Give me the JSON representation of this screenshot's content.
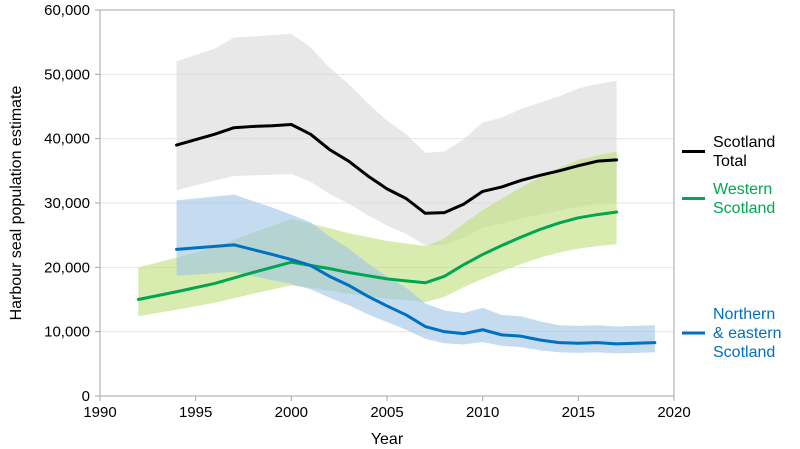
{
  "chart_data": {
    "type": "line",
    "title": "",
    "xlabel": "Year",
    "ylabel": "Harbour seal population estimate",
    "xlim": [
      1990,
      2020
    ],
    "ylim": [
      0,
      60000
    ],
    "x_ticks": [
      1990,
      1995,
      2000,
      2005,
      2010,
      2015,
      2020
    ],
    "y_ticks": [
      0,
      10000,
      20000,
      30000,
      40000,
      50000,
      60000
    ],
    "x_tick_labels": [
      "1990",
      "1995",
      "2000",
      "2005",
      "2010",
      "2015",
      "2020"
    ],
    "y_tick_labels": [
      "0",
      "10,000",
      "20,000",
      "30,000",
      "40,000",
      "50,000",
      "60,000"
    ],
    "grid": "horizontal",
    "legend": "right",
    "series": [
      {
        "name": "Scotland Total",
        "label_lines": [
          "Scotland",
          "Total"
        ],
        "color": "#000000",
        "band_color": "#d9d9d9",
        "x": [
          1994,
          1996,
          1997,
          1998,
          1999,
          2000,
          2001,
          2002,
          2003,
          2004,
          2005,
          2006,
          2007,
          2008,
          2009,
          2010,
          2011,
          2012,
          2013,
          2014,
          2015,
          2016,
          2017
        ],
        "values": [
          39000,
          40700,
          41700,
          41900,
          42000,
          42200,
          40700,
          38300,
          36500,
          34200,
          32200,
          30700,
          28400,
          28500,
          29800,
          31800,
          32500,
          33500,
          34300,
          35000,
          35800,
          36500,
          36700
        ],
        "upper": [
          52000,
          54000,
          55700,
          55900,
          56100,
          56300,
          54200,
          51000,
          48500,
          45500,
          42800,
          40700,
          37800,
          38000,
          39900,
          42500,
          43300,
          44600,
          45600,
          46600,
          47800,
          48500,
          49000
        ],
        "lower": [
          32000,
          33500,
          34200,
          34300,
          34400,
          34500,
          33300,
          31400,
          29900,
          28100,
          26500,
          25200,
          23400,
          23500,
          24600,
          26200,
          26800,
          27600,
          28200,
          28800,
          29400,
          29900,
          30100
        ]
      },
      {
        "name": "Western Scotland",
        "label_lines": [
          "Western",
          "Scotland"
        ],
        "color": "#00a651",
        "band_color": "#bfe07a",
        "x": [
          1992,
          1994,
          1996,
          1998,
          2000,
          2001,
          2002,
          2003,
          2004,
          2005,
          2006,
          2007,
          2008,
          2009,
          2010,
          2011,
          2012,
          2013,
          2014,
          2015,
          2016,
          2017
        ],
        "values": [
          15000,
          16200,
          17500,
          19200,
          20800,
          20300,
          19800,
          19200,
          18700,
          18200,
          17900,
          17600,
          18600,
          20400,
          22000,
          23400,
          24700,
          25900,
          26900,
          27700,
          28200,
          28600
        ],
        "upper": [
          20000,
          21500,
          23100,
          25400,
          27500,
          26800,
          26100,
          25300,
          24700,
          24100,
          23700,
          23300,
          24500,
          26800,
          28900,
          30700,
          32400,
          34000,
          35500,
          36700,
          37400,
          38000
        ],
        "lower": [
          12400,
          13400,
          14500,
          15900,
          17200,
          16800,
          16400,
          15900,
          15500,
          15100,
          14900,
          14600,
          15400,
          16900,
          18200,
          19400,
          20500,
          21500,
          22300,
          22900,
          23300,
          23600
        ]
      },
      {
        "name": "Northern & eastern Scotland",
        "label_lines": [
          "Northern",
          "& eastern",
          "Scotland"
        ],
        "color": "#0070c0",
        "band_color": "#9dc3e6",
        "x": [
          1994,
          1997,
          1999,
          2000,
          2001,
          2002,
          2003,
          2004,
          2005,
          2006,
          2007,
          2008,
          2009,
          2010,
          2011,
          2012,
          2013,
          2014,
          2015,
          2016,
          2017,
          2018,
          2019
        ],
        "values": [
          22800,
          23500,
          22000,
          21200,
          20300,
          18600,
          17200,
          15500,
          14000,
          12600,
          10800,
          10000,
          9700,
          10300,
          9500,
          9300,
          8700,
          8300,
          8200,
          8300,
          8100,
          8200,
          8300
        ],
        "upper": [
          30400,
          31300,
          29300,
          28200,
          27000,
          24800,
          22900,
          20600,
          18600,
          16800,
          14400,
          13300,
          12900,
          13700,
          12600,
          12400,
          11600,
          11000,
          10900,
          11000,
          10800,
          10900,
          11000
        ],
        "lower": [
          18700,
          19300,
          18000,
          17400,
          16600,
          15300,
          14100,
          12700,
          11500,
          10300,
          8900,
          8200,
          8000,
          8400,
          7800,
          7600,
          7100,
          6800,
          6700,
          6800,
          6600,
          6700,
          6800
        ]
      }
    ]
  }
}
